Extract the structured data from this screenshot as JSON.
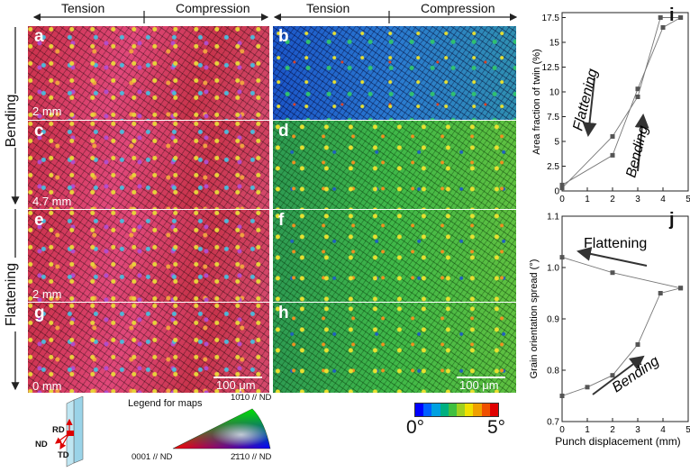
{
  "headers": {
    "tension_left": "Tension",
    "compression_left": "Compression",
    "tension_right": "Tension",
    "compression_right": "Compression"
  },
  "side_labels": {
    "bending": "Bending",
    "flattening": "Flattening"
  },
  "panels": {
    "a": "a",
    "b": "b",
    "c": "c",
    "d": "d",
    "e": "e",
    "f": "f",
    "g": "g",
    "h": "h",
    "i": "i",
    "j": "j"
  },
  "map_labels": {
    "a": "2 mm",
    "c": "4.7 mm",
    "e": "2 mm",
    "g": "0 mm",
    "scale_left": "100 μm",
    "scale_right": "100 μm"
  },
  "legend": {
    "title": "Legend for maps",
    "top": "10̄10 // ND",
    "left": "0001 // ND",
    "right": "2̄1̄10 // ND",
    "rd": "RD",
    "nd": "ND",
    "td": "TD"
  },
  "colorbar": {
    "min_label": "0°",
    "max_label": "5°",
    "colors": [
      "#0000ff",
      "#0060ff",
      "#00a0e0",
      "#00b080",
      "#40c040",
      "#a0d020",
      "#f0e000",
      "#f0a000",
      "#f05000",
      "#e00000"
    ]
  },
  "chart_data": [
    {
      "type": "line",
      "panel": "i",
      "xlabel": "",
      "ylabel": "Area fraction of twin (%)",
      "xlim": [
        0,
        5
      ],
      "ylim": [
        0,
        18
      ],
      "xticks": [
        0,
        1,
        2,
        3,
        4,
        5
      ],
      "yticks": [
        0,
        2.5,
        5,
        7.5,
        10,
        12.5,
        15,
        17.5
      ],
      "ytick_labels": [
        "0",
        "2.5",
        "5",
        "7.5",
        "10",
        "12.5",
        "15",
        "17.5"
      ],
      "series": [
        {
          "name": "Bending",
          "x": [
            0,
            2,
            3,
            4,
            4.7
          ],
          "y": [
            0.6,
            3.6,
            10.3,
            16.5,
            17.5
          ]
        },
        {
          "name": "Flattening",
          "x": [
            4.7,
            3.9,
            3,
            2,
            0
          ],
          "y": [
            17.5,
            17.5,
            9.5,
            5.5,
            0.3
          ]
        }
      ],
      "annotations": [
        "Flattening",
        "Bending"
      ]
    },
    {
      "type": "line",
      "panel": "j",
      "xlabel": "Punch displacement (mm)",
      "ylabel": "Grain orientation spread (°)",
      "xlim": [
        0,
        5
      ],
      "ylim": [
        0.7,
        1.1
      ],
      "xticks": [
        0,
        1,
        2,
        3,
        4,
        5
      ],
      "yticks": [
        0.7,
        0.8,
        0.9,
        1.0,
        1.1
      ],
      "ytick_labels": [
        "0.7",
        "0.8",
        "0.9",
        "1.0",
        "1.1"
      ],
      "series": [
        {
          "name": "Bending",
          "x": [
            0,
            1,
            2,
            3,
            3.9,
            4.7
          ],
          "y": [
            0.75,
            0.767,
            0.79,
            0.85,
            0.95,
            0.96
          ]
        },
        {
          "name": "Flattening",
          "x": [
            4.7,
            2,
            0
          ],
          "y": [
            0.96,
            0.99,
            1.02
          ]
        }
      ],
      "annotations": [
        "Flattening",
        "Bending"
      ]
    }
  ]
}
